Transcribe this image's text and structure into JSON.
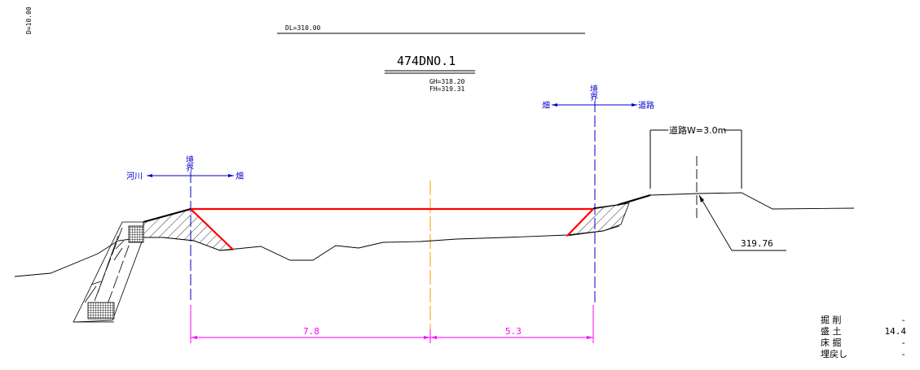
{
  "drawing": {
    "scale_label": "D=10.00",
    "datum_label": "DL=310.00",
    "section_title": "474DNO.1",
    "ground_height": "GH=318.20",
    "formation_height": "FH=319.31"
  },
  "boundary_left": {
    "label_top": "境",
    "label_bottom": "界",
    "left_side": "河川",
    "right_side": "畑"
  },
  "boundary_right": {
    "label_top": "境",
    "label_bottom": "界",
    "left_side": "畑",
    "right_side": "道路"
  },
  "road": {
    "width_label": "道路W=3.0m",
    "elevation_label": "319.76"
  },
  "dimensions": {
    "left_span": "7.8",
    "right_span": "5.3"
  },
  "quantities": [
    {
      "label": "掘 削",
      "value": "-"
    },
    {
      "label": "盛 土",
      "value": "14.4"
    },
    {
      "label": "床 掘",
      "value": "-"
    },
    {
      "label": "埋戻し",
      "value": "-"
    }
  ],
  "colors": {
    "boundary": "#0000cc",
    "fill_line": "#ff0000",
    "center_line": "#ff9900",
    "dimension": "#ff00ff",
    "ground": "#000000"
  }
}
